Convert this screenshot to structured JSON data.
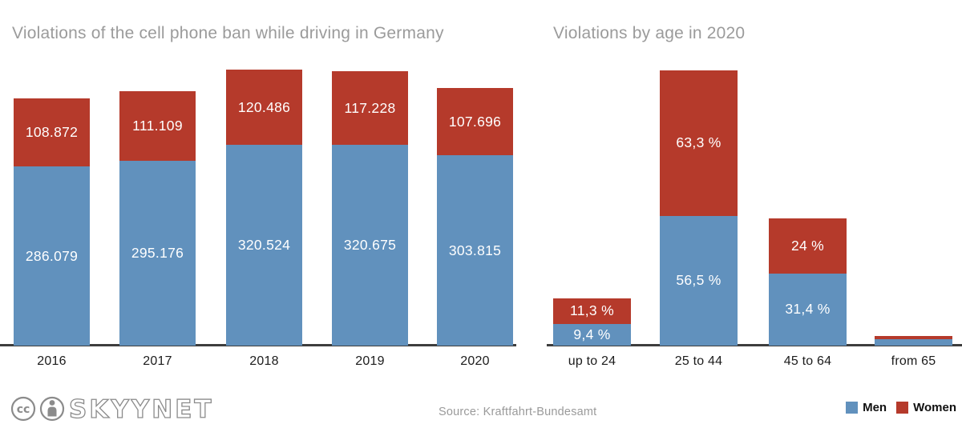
{
  "titles": {
    "left": "Violations of the cell phone ban while driving in Germany",
    "right": "Violations by age in 2020"
  },
  "footer": {
    "source": "Source: Kraftfahrt-Bundesamt",
    "logo_text": "SKYYNET",
    "cc_text": "cc"
  },
  "legend": {
    "items": [
      {
        "label": "Men",
        "color": "#6191bd"
      },
      {
        "label": "Women",
        "color": "#b53a2b"
      }
    ]
  },
  "colors": {
    "men": "#6191bd",
    "women": "#b53a2b",
    "axis": "#3d3d3d",
    "title": "#9b9b9b",
    "bar_label": "#ffffff"
  },
  "chart_data": [
    {
      "type": "bar",
      "stacked": true,
      "title": "Violations of the cell phone ban while driving in Germany",
      "categories": [
        "2016",
        "2017",
        "2018",
        "2019",
        "2020"
      ],
      "series": [
        {
          "name": "Men",
          "color": "#6191bd",
          "values": [
            286079,
            295176,
            320524,
            320675,
            303815
          ],
          "labels": [
            "286.079",
            "295.176",
            "320.524",
            "320.675",
            "303.815"
          ]
        },
        {
          "name": "Women",
          "color": "#b53a2b",
          "values": [
            108872,
            111109,
            120486,
            117228,
            107696
          ],
          "labels": [
            "108.872",
            "111.109",
            "120.486",
            "117.228",
            "107.696"
          ]
        }
      ],
      "ylim": [
        0,
        441010
      ],
      "grid": false,
      "legend_position": "bottom-right"
    },
    {
      "type": "bar",
      "stacked": true,
      "title": "Violations by age in 2020",
      "categories": [
        "up to 24",
        "25 to 44",
        "45 to 64",
        "from 65"
      ],
      "unit": "%",
      "series": [
        {
          "name": "Men",
          "color": "#6191bd",
          "values": [
            9.4,
            56.5,
            31.4,
            2.7
          ],
          "labels": [
            "9,4 %",
            "56,5 %",
            "31,4 %",
            ""
          ]
        },
        {
          "name": "Women",
          "color": "#b53a2b",
          "values": [
            11.3,
            63.3,
            24,
            1.4
          ],
          "labels": [
            "11,3 %",
            "63,3 %",
            "24 %",
            ""
          ]
        }
      ],
      "ylim": [
        0,
        119.8
      ],
      "grid": false,
      "legend_position": "bottom-right"
    }
  ]
}
